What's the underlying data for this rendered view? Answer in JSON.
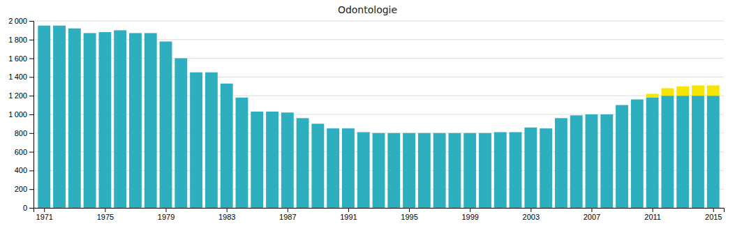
{
  "chart_data": {
    "type": "bar",
    "title": "Odontologie",
    "x": [
      1971,
      1972,
      1973,
      1974,
      1975,
      1976,
      1977,
      1978,
      1979,
      1980,
      1981,
      1982,
      1983,
      1984,
      1985,
      1986,
      1987,
      1988,
      1989,
      1990,
      1991,
      1992,
      1993,
      1994,
      1995,
      1996,
      1997,
      1998,
      1999,
      2000,
      2001,
      2002,
      2003,
      2004,
      2005,
      2006,
      2007,
      2008,
      2009,
      2010,
      2011,
      2012,
      2013,
      2014,
      2015
    ],
    "series": [
      {
        "color": "#2eafc0",
        "values": [
          1950,
          1950,
          1920,
          1870,
          1880,
          1900,
          1870,
          1870,
          1780,
          1600,
          1450,
          1450,
          1330,
          1180,
          1030,
          1030,
          1020,
          960,
          900,
          850,
          850,
          810,
          800,
          800,
          800,
          800,
          800,
          800,
          800,
          800,
          810,
          810,
          860,
          850,
          960,
          990,
          1000,
          1000,
          1100,
          1160,
          1180,
          1200,
          1200,
          1200,
          1200
        ]
      },
      {
        "color": "#f5e500",
        "values": [
          0,
          0,
          0,
          0,
          0,
          0,
          0,
          0,
          0,
          0,
          0,
          0,
          0,
          0,
          0,
          0,
          0,
          0,
          0,
          0,
          0,
          0,
          0,
          0,
          0,
          0,
          0,
          0,
          0,
          0,
          0,
          0,
          0,
          0,
          0,
          0,
          0,
          0,
          0,
          0,
          40,
          80,
          100,
          110,
          110
        ]
      }
    ],
    "stacked": true,
    "xlim": [
      1970.3,
      2015.7
    ],
    "xticks": [
      1971,
      1975,
      1979,
      1983,
      1987,
      1991,
      1995,
      1999,
      2003,
      2007,
      2011,
      2015
    ],
    "ylim": [
      0,
      2000
    ],
    "yticks": [
      0,
      200,
      400,
      600,
      800,
      {
        "value": 1000,
        "label": "1 000"
      },
      {
        "value": 1200,
        "label": "1 200"
      },
      {
        "value": 1400,
        "label": "1 400"
      },
      {
        "value": 1600,
        "label": "1 600"
      },
      {
        "value": 1800,
        "label": "1 800"
      },
      {
        "value": 2000,
        "label": "2 000"
      }
    ],
    "grid": true
  }
}
